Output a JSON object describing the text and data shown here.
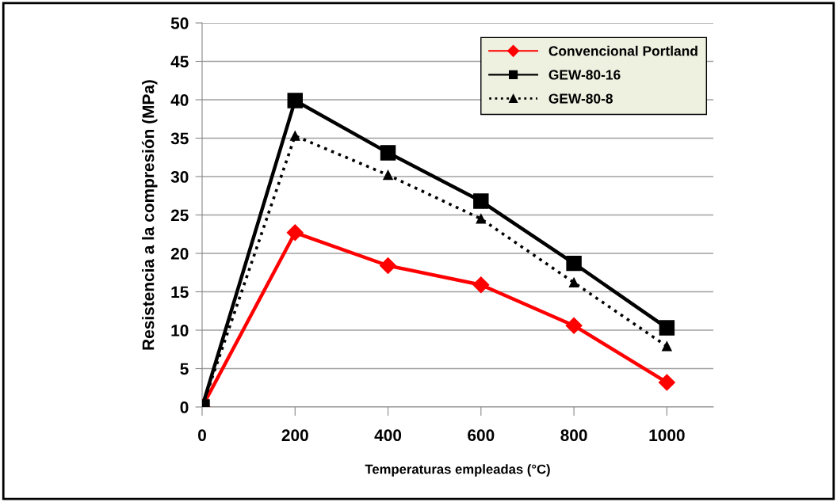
{
  "chart_data": {
    "type": "line",
    "xlabel": "Temperaturas empleadas (°C)",
    "ylabel": "Resistencia a la compresión (MPa)",
    "x": [
      0,
      200,
      400,
      600,
      800,
      1000
    ],
    "series": [
      {
        "name": "Convencional Portland",
        "color": "#ff0000",
        "marker": "diamond",
        "line_style": "solid",
        "values": [
          0,
          22.7,
          18.4,
          15.9,
          10.6,
          3.2
        ]
      },
      {
        "name": "GEW-80-16",
        "color": "#000000",
        "marker": "square",
        "line_style": "solid",
        "values": [
          0,
          39.9,
          33.1,
          26.8,
          18.7,
          10.3
        ]
      },
      {
        "name": "GEW-80-8",
        "color": "#000000",
        "marker": "triangle",
        "line_style": "dotted",
        "values": [
          0,
          35.3,
          30.2,
          24.5,
          16.2,
          7.9
        ]
      }
    ],
    "xlim": [
      0,
      1100
    ],
    "xticks": [
      0,
      200,
      400,
      600,
      800,
      1000
    ],
    "ylim": [
      0,
      50
    ],
    "yticks": [
      0,
      5,
      10,
      15,
      20,
      25,
      30,
      35,
      40,
      45,
      50
    ],
    "grid": "y",
    "legend": "top right"
  }
}
